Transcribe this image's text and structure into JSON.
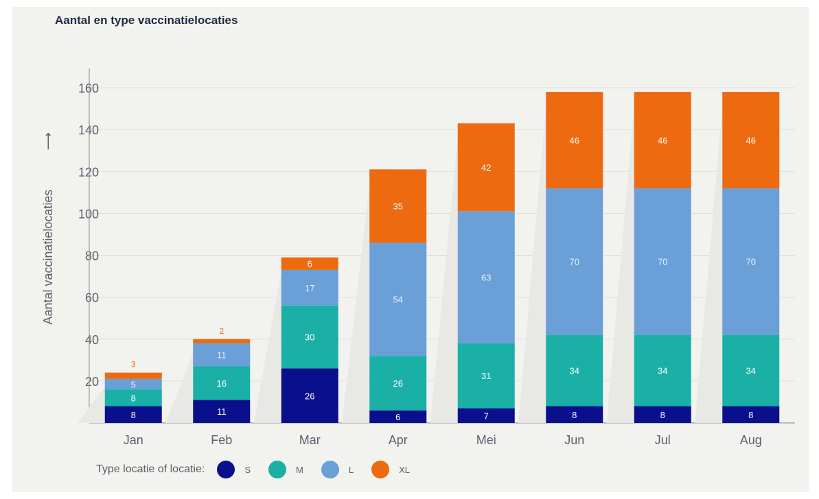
{
  "chart_data": {
    "type": "bar",
    "stacked": true,
    "title": "Aantal en type vaccinatielocaties",
    "ylabel": "Aantal vaccinatielocaties",
    "ylabel_arrow": "⟶",
    "xlabel": "",
    "categories": [
      "Jan",
      "Feb",
      "Mar",
      "Apr",
      "Mei",
      "Jun",
      "Jul",
      "Aug"
    ],
    "ylim": [
      0,
      160
    ],
    "yticks": [
      20,
      40,
      60,
      80,
      100,
      120,
      140,
      160
    ],
    "grid": true,
    "legend_title": "Type locatie of locatie:",
    "legend_position": "bottom-left",
    "series": [
      {
        "name": "S",
        "color": "#0a0f8c",
        "values": [
          8,
          11,
          26,
          6,
          7,
          8,
          8,
          8
        ]
      },
      {
        "name": "M",
        "color": "#1bb0a5",
        "values": [
          8,
          16,
          30,
          26,
          31,
          34,
          34,
          34
        ]
      },
      {
        "name": "L",
        "color": "#6a9fd8",
        "values": [
          5,
          11,
          17,
          54,
          63,
          70,
          70,
          70
        ]
      },
      {
        "name": "XL",
        "color": "#ed6a10",
        "values": [
          3,
          2,
          6,
          35,
          42,
          46,
          46,
          46
        ]
      }
    ]
  }
}
